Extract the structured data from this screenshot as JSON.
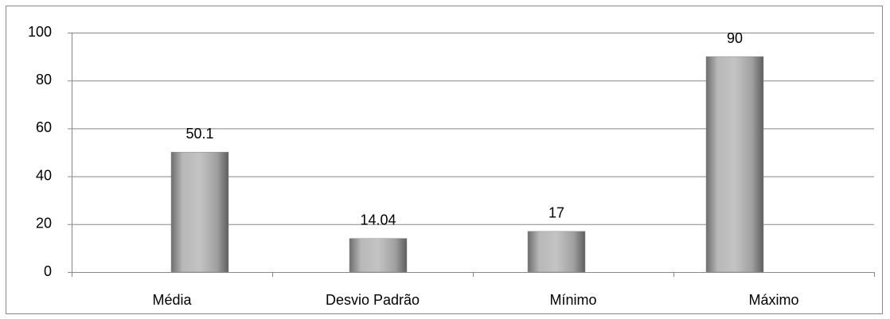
{
  "chart_data": {
    "type": "bar",
    "categories": [
      "Média",
      "Desvio Padrão",
      "Mínimo",
      "Máximo"
    ],
    "values": [
      50.1,
      14.04,
      17,
      90
    ],
    "color": "#a6a6a6",
    "ylim": [
      0,
      100
    ],
    "yticks": [
      0,
      20,
      40,
      60,
      80,
      100
    ],
    "grid": true
  }
}
